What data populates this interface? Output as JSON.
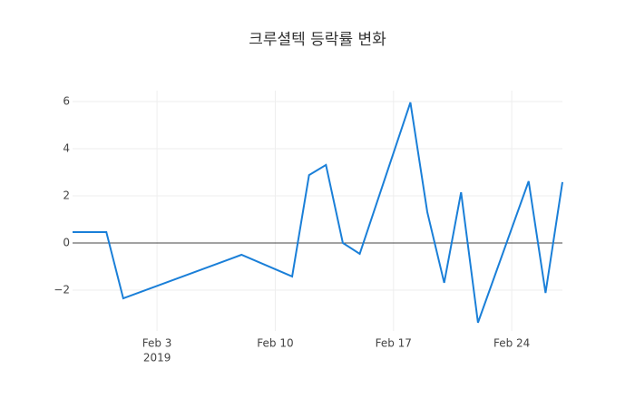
{
  "chart_data": {
    "type": "line",
    "title": "크루셜텍 등락률 변화",
    "x": [
      "2019-01-29",
      "2019-01-31",
      "2019-02-01",
      "2019-02-08",
      "2019-02-11",
      "2019-02-12",
      "2019-02-13",
      "2019-02-14",
      "2019-02-15",
      "2019-02-18",
      "2019-02-19",
      "2019-02-20",
      "2019-02-21",
      "2019-02-22",
      "2019-02-25",
      "2019-02-26",
      "2019-02-27"
    ],
    "series": [
      {
        "name": "등락률",
        "color": "#1a7fd8",
        "values": [
          0.46,
          0.46,
          -2.35,
          -0.5,
          -1.42,
          2.88,
          3.31,
          0,
          -0.46,
          5.96,
          1.31,
          -1.69,
          2.15,
          -3.38,
          2.62,
          -2.12,
          2.58
        ]
      }
    ],
    "xlim": [
      "2019-01-29",
      "2019-02-27"
    ],
    "xticks": [
      {
        "value": "2019-02-03",
        "label": "Feb 3"
      },
      {
        "value": "2019-02-10",
        "label": "Feb 10"
      },
      {
        "value": "2019-02-17",
        "label": "Feb 17"
      },
      {
        "value": "2019-02-24",
        "label": "Feb 24"
      }
    ],
    "x_year_label": "2019",
    "ylim": [
      -3.73,
      6.46
    ],
    "yticks": [
      {
        "value": -2,
        "label": "−2"
      },
      0,
      2,
      4,
      6
    ],
    "grid": true
  }
}
